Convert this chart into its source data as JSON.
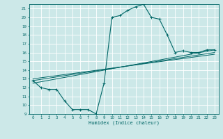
{
  "xlabel": "Humidex (Indice chaleur)",
  "bg_color": "#cce8e8",
  "grid_color": "#ffffff",
  "line_color": "#006666",
  "xlim": [
    -0.5,
    23.5
  ],
  "ylim": [
    9,
    21.5
  ],
  "xticks": [
    0,
    1,
    2,
    3,
    4,
    5,
    6,
    7,
    8,
    9,
    10,
    11,
    12,
    13,
    14,
    15,
    16,
    17,
    18,
    19,
    20,
    21,
    22,
    23
  ],
  "yticks": [
    9,
    10,
    11,
    12,
    13,
    14,
    15,
    16,
    17,
    18,
    19,
    20,
    21
  ],
  "main_x": [
    0,
    1,
    2,
    3,
    4,
    5,
    6,
    7,
    8,
    9,
    10,
    11,
    12,
    13,
    14,
    15,
    16,
    17,
    18,
    19,
    20,
    21,
    22,
    23
  ],
  "main_y": [
    12.8,
    12.0,
    11.8,
    11.8,
    10.5,
    9.5,
    9.5,
    9.5,
    9.0,
    12.5,
    20.0,
    20.2,
    20.8,
    21.2,
    21.5,
    20.0,
    19.8,
    18.0,
    16.0,
    16.2,
    16.0,
    16.0,
    16.3,
    16.3
  ],
  "line2_x": [
    0,
    23
  ],
  "line2_y": [
    12.5,
    16.3
  ],
  "line3_x": [
    0,
    23
  ],
  "line3_y": [
    12.8,
    16.0
  ],
  "line4_x": [
    0,
    23
  ],
  "line4_y": [
    13.0,
    15.8
  ]
}
